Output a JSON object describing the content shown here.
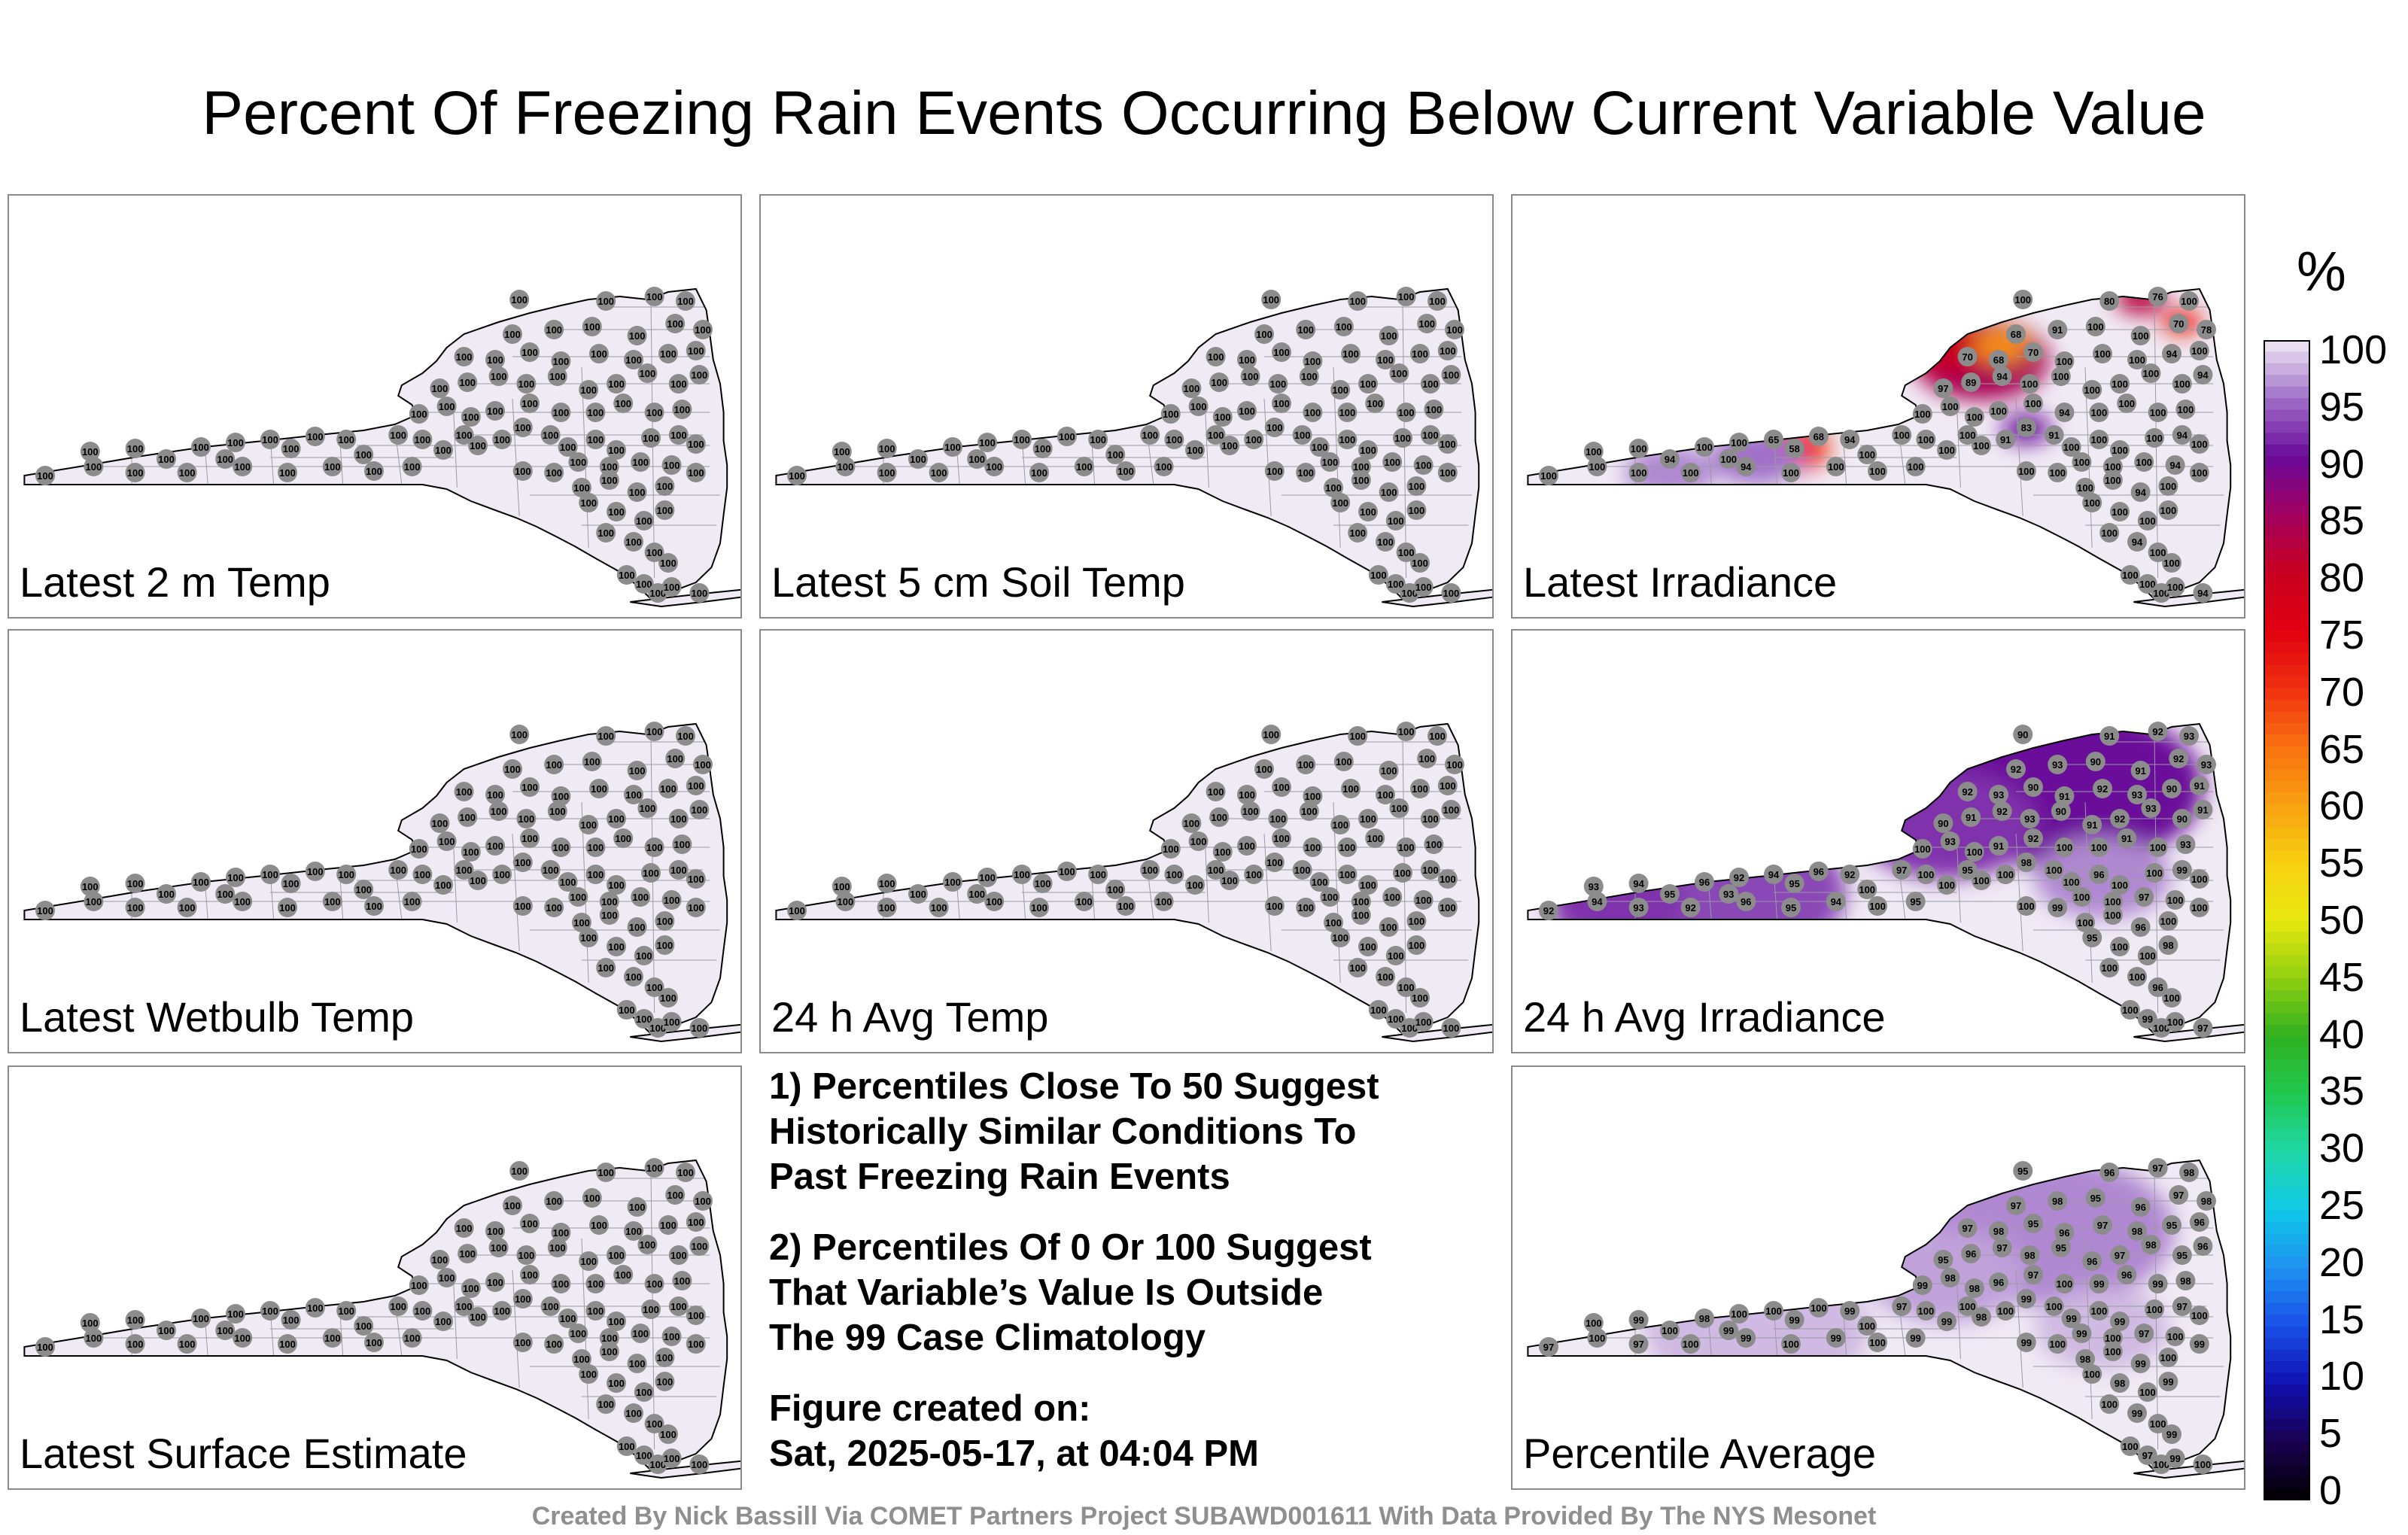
{
  "title": "Percent Of Freezing Rain Events Occurring Below Current Variable Value",
  "panels": [
    {
      "label": "Latest 2 m Temp",
      "mode": "all100"
    },
    {
      "label": "Latest 5 cm Soil Temp",
      "mode": "all100"
    },
    {
      "label": "Latest Irradiance",
      "mode": "irradiance"
    },
    {
      "label": "Latest Wetbulb Temp",
      "mode": "all100"
    },
    {
      "label": "24 h Avg Temp",
      "mode": "all100"
    },
    {
      "label": "24 h Avg Irradiance",
      "mode": "avgirr"
    },
    {
      "label": "Latest Surface Estimate",
      "mode": "all100"
    },
    {
      "label": "Percentile Average",
      "mode": "average"
    }
  ],
  "notes": {
    "note1": [
      "1) Percentiles Close To 50 Suggest",
      "Historically Similar Conditions To",
      "Past Freezing Rain Events"
    ],
    "note2": [
      "2) Percentiles Of 0 Or 100 Suggest",
      "That Variable’s Value Is Outside",
      "The 99 Case Climatology"
    ],
    "created": [
      "Figure created on:",
      "Sat, 2025-05-17, at 04:04 PM"
    ]
  },
  "colorbar": {
    "unit": "%",
    "ticks": [
      "100",
      "95",
      "90",
      "85",
      "80",
      "75",
      "70",
      "65",
      "60",
      "55",
      "50",
      "45",
      "40",
      "35",
      "30",
      "25",
      "20",
      "15",
      "10",
      "5",
      "0"
    ],
    "colors": {
      "0": "#000000",
      "5": "#1a0050",
      "10": "#1010b0",
      "15": "#1850e8",
      "20": "#1e90f0",
      "25": "#10c8e8",
      "30": "#20d8a8",
      "35": "#20c850",
      "40": "#30b020",
      "45": "#90d010",
      "50": "#e8e810",
      "55": "#f8d010",
      "60": "#f8a010",
      "65": "#f87010",
      "70": "#f03010",
      "75": "#e00010",
      "80": "#c80020",
      "85": "#a00060",
      "90": "#6a0a9a",
      "95": "#a070c8",
      "100": "#f0eaf4"
    }
  },
  "footer": "Created By Nick Bassill Via COMET Partners Project SUBAWD001611 With Data Provided By The NYS Mesonet"
}
